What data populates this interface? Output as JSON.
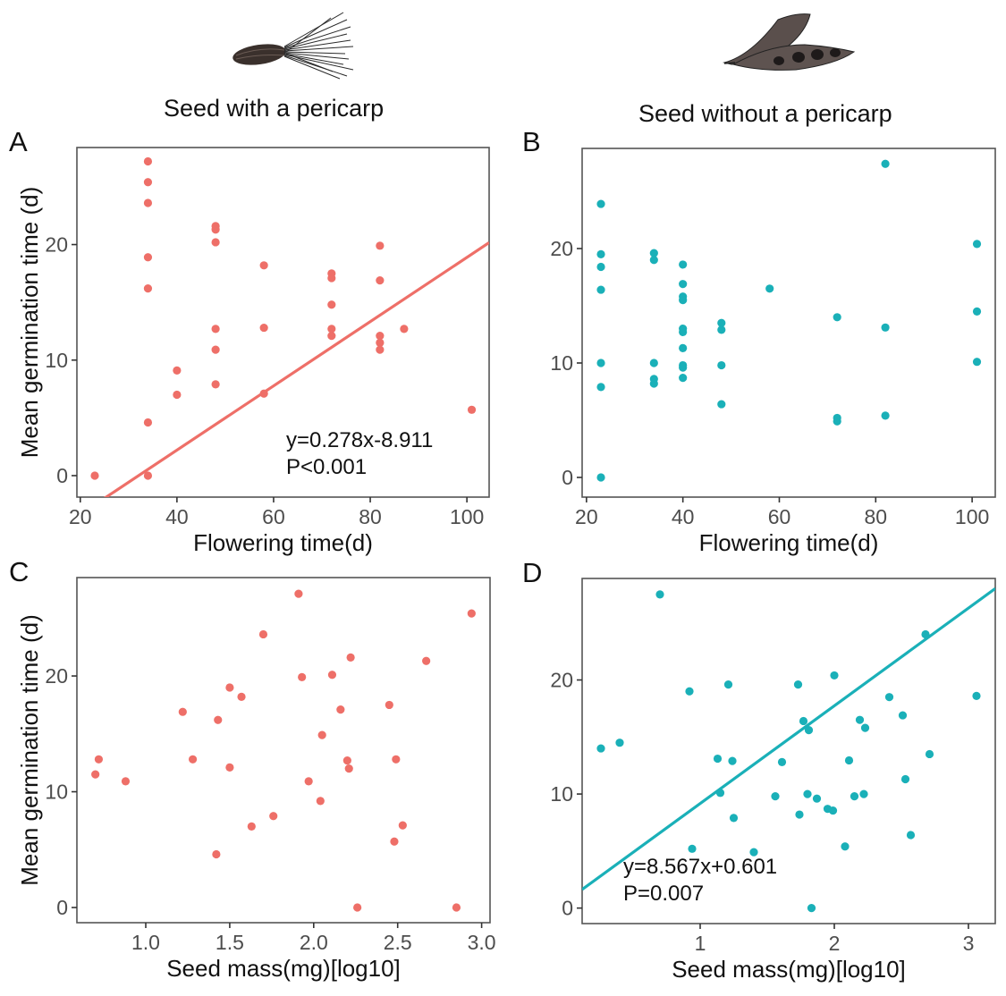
{
  "header": {
    "left_title": "Seed with a pericarp",
    "right_title": "Seed without a pericarp",
    "left_icon": "achene-seed-with-bristles-icon",
    "right_icon": "open-legume-pod-icon"
  },
  "colors": {
    "with_pericarp": "#EE6F68",
    "without_pericarp": "#1AB0B8"
  },
  "chart_data": [
    {
      "id": "A",
      "type": "scatter",
      "panel_label": "A",
      "group": "Seed with a pericarp",
      "xlabel": "Flowering time(d)",
      "ylabel": "Mean germination time (d)",
      "xlim": [
        19.3,
        104.6
      ],
      "ylim": [
        -1.86,
        28.4
      ],
      "xticks": [
        20,
        40,
        60,
        80,
        100
      ],
      "xtick_labels": [
        "20",
        "40",
        "60",
        "80",
        "100"
      ],
      "yticks": [
        0,
        10,
        20
      ],
      "ytick_labels": [
        "0",
        "10",
        "20"
      ],
      "grid": false,
      "color": "#EE6F68",
      "points": [
        [
          23,
          0
        ],
        [
          34,
          27.2
        ],
        [
          34,
          25.4
        ],
        [
          34,
          23.6
        ],
        [
          34,
          18.9
        ],
        [
          34,
          16.2
        ],
        [
          34,
          4.6
        ],
        [
          34,
          0
        ],
        [
          40,
          9.1
        ],
        [
          40,
          7.0
        ],
        [
          48,
          21.6
        ],
        [
          48,
          21.3
        ],
        [
          48,
          20.2
        ],
        [
          48,
          12.7
        ],
        [
          48,
          10.9
        ],
        [
          48,
          7.9
        ],
        [
          58,
          18.2
        ],
        [
          58,
          12.8
        ],
        [
          58,
          7.1
        ],
        [
          72,
          17.5
        ],
        [
          72,
          17.1
        ],
        [
          72,
          14.8
        ],
        [
          72,
          12.7
        ],
        [
          72,
          12.1
        ],
        [
          82,
          19.9
        ],
        [
          82,
          16.9
        ],
        [
          82,
          12.1
        ],
        [
          82,
          11.5
        ],
        [
          82,
          10.9
        ],
        [
          87,
          12.7
        ],
        [
          101,
          5.7
        ]
      ],
      "fit": {
        "slope": 0.278,
        "intercept": -8.911
      },
      "annotation": [
        "y=0.278x-8.911",
        "P<0.001"
      ]
    },
    {
      "id": "B",
      "type": "scatter",
      "panel_label": "B",
      "group": "Seed without a pericarp",
      "xlabel": "Flowering time(d)",
      "ylabel": "",
      "xlim": [
        19.1,
        104.8
      ],
      "ylim": [
        -1.72,
        28.75
      ],
      "xticks": [
        20,
        40,
        60,
        80,
        100
      ],
      "xtick_labels": [
        "20",
        "40",
        "60",
        "80",
        "100"
      ],
      "yticks": [
        0,
        10,
        20
      ],
      "ytick_labels": [
        "0",
        "10",
        "20"
      ],
      "grid": false,
      "color": "#1AB0B8",
      "points": [
        [
          23,
          23.9
        ],
        [
          23,
          19.5
        ],
        [
          23,
          18.4
        ],
        [
          23,
          16.4
        ],
        [
          23,
          10.0
        ],
        [
          23,
          7.9
        ],
        [
          23,
          0
        ],
        [
          34,
          19.6
        ],
        [
          34,
          19.0
        ],
        [
          34,
          10.0
        ],
        [
          34,
          8.6
        ],
        [
          34,
          8.2
        ],
        [
          40,
          18.6
        ],
        [
          40,
          16.9
        ],
        [
          40,
          15.8
        ],
        [
          40,
          15.5
        ],
        [
          40,
          13.0
        ],
        [
          40,
          12.7
        ],
        [
          40,
          11.3
        ],
        [
          40,
          9.8
        ],
        [
          40,
          9.6
        ],
        [
          40,
          8.7
        ],
        [
          48,
          13.5
        ],
        [
          48,
          12.9
        ],
        [
          48,
          9.8
        ],
        [
          48,
          6.4
        ],
        [
          58,
          16.5
        ],
        [
          72,
          14.0
        ],
        [
          72,
          5.2
        ],
        [
          72,
          4.9
        ],
        [
          82,
          27.4
        ],
        [
          82,
          13.1
        ],
        [
          82,
          5.4
        ],
        [
          101,
          20.4
        ],
        [
          101,
          14.5
        ],
        [
          101,
          10.1
        ]
      ],
      "fit": null,
      "annotation": []
    },
    {
      "id": "C",
      "type": "scatter",
      "panel_label": "C",
      "group": "Seed with a pericarp",
      "xlabel": "Seed mass(mg)[log10]",
      "ylabel": "Mean germination time (d)",
      "xlim": [
        0.59,
        3.05
      ],
      "ylim": [
        -1.31,
        28.5
      ],
      "xticks": [
        1.0,
        1.5,
        2.0,
        2.5,
        3.0
      ],
      "xtick_labels": [
        "1.0",
        "1.5",
        "2.0",
        "2.5",
        "3.0"
      ],
      "yticks": [
        0,
        10,
        20
      ],
      "ytick_labels": [
        "0",
        "10",
        "20"
      ],
      "grid": false,
      "color": "#EE6F68",
      "points": [
        [
          1.91,
          27.1
        ],
        [
          2.94,
          25.4
        ],
        [
          1.7,
          23.6
        ],
        [
          2.22,
          21.6
        ],
        [
          2.67,
          21.3
        ],
        [
          1.93,
          19.9
        ],
        [
          2.11,
          20.1
        ],
        [
          1.5,
          19.0
        ],
        [
          1.57,
          18.2
        ],
        [
          1.22,
          16.9
        ],
        [
          1.43,
          16.2
        ],
        [
          2.45,
          17.5
        ],
        [
          2.16,
          17.1
        ],
        [
          2.05,
          14.9
        ],
        [
          0.72,
          12.8
        ],
        [
          0.7,
          11.5
        ],
        [
          0.88,
          10.9
        ],
        [
          1.28,
          12.8
        ],
        [
          1.5,
          12.1
        ],
        [
          2.2,
          12.7
        ],
        [
          2.21,
          12.0
        ],
        [
          2.49,
          12.8
        ],
        [
          1.97,
          10.9
        ],
        [
          2.04,
          9.2
        ],
        [
          1.76,
          7.9
        ],
        [
          1.63,
          7.0
        ],
        [
          2.53,
          7.1
        ],
        [
          2.48,
          5.7
        ],
        [
          1.42,
          4.6
        ],
        [
          2.26,
          0
        ],
        [
          2.85,
          0
        ]
      ],
      "fit": null,
      "annotation": []
    },
    {
      "id": "D",
      "type": "scatter",
      "panel_label": "D",
      "group": "Seed without a pericarp",
      "xlabel": "Seed mass(mg)[log10]",
      "ylabel": "",
      "xlim": [
        0.12,
        3.2
      ],
      "ylim": [
        -1.36,
        28.9
      ],
      "xticks": [
        1,
        2,
        3
      ],
      "xtick_labels": [
        "1",
        "2",
        "3"
      ],
      "yticks": [
        0,
        10,
        20
      ],
      "ytick_labels": [
        "0",
        "10",
        "20"
      ],
      "grid": false,
      "color": "#1AB0B8",
      "points": [
        [
          0.7,
          27.5
        ],
        [
          2.68,
          24.0
        ],
        [
          2.0,
          20.4
        ],
        [
          1.21,
          19.6
        ],
        [
          1.73,
          19.6
        ],
        [
          0.92,
          19.0
        ],
        [
          2.41,
          18.5
        ],
        [
          3.06,
          18.6
        ],
        [
          2.51,
          16.9
        ],
        [
          2.19,
          16.5
        ],
        [
          1.77,
          16.4
        ],
        [
          2.23,
          15.8
        ],
        [
          1.81,
          15.6
        ],
        [
          0.4,
          14.5
        ],
        [
          0.26,
          14.0
        ],
        [
          2.71,
          13.5
        ],
        [
          1.13,
          13.1
        ],
        [
          1.24,
          12.9
        ],
        [
          2.11,
          12.95
        ],
        [
          1.61,
          12.8
        ],
        [
          2.53,
          11.3
        ],
        [
          1.15,
          10.1
        ],
        [
          1.8,
          10.0
        ],
        [
          2.22,
          10.0
        ],
        [
          2.15,
          9.8
        ],
        [
          1.56,
          9.8
        ],
        [
          1.87,
          9.6
        ],
        [
          1.95,
          8.7
        ],
        [
          1.99,
          8.55
        ],
        [
          1.74,
          8.2
        ],
        [
          1.25,
          7.9
        ],
        [
          2.57,
          6.4
        ],
        [
          2.08,
          5.4
        ],
        [
          0.94,
          5.2
        ],
        [
          1.4,
          4.9
        ],
        [
          1.83,
          0
        ]
      ],
      "fit": {
        "slope": 8.567,
        "intercept": 0.601
      },
      "annotation": [
        "y=8.567x+0.601",
        "P=0.007"
      ]
    }
  ]
}
